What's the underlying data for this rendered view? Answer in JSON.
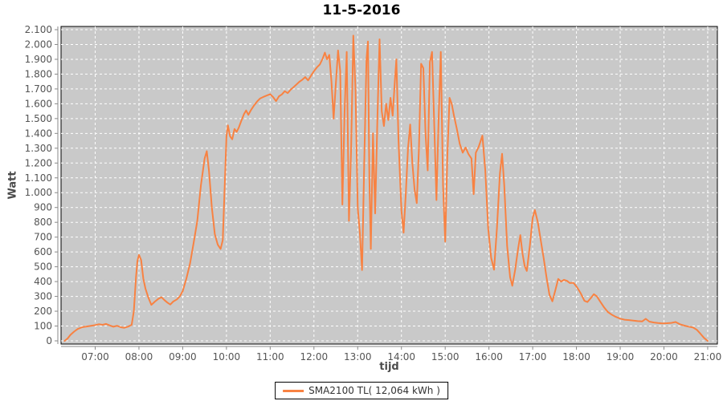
{
  "title": "11-5-2016",
  "y_axis_label": "Watt",
  "x_axis_label": "tijd",
  "legend": {
    "label": "SMA2100 TL( 12,064 kWh )"
  },
  "chart_data": {
    "type": "line",
    "title": "11-5-2016",
    "xlabel": "tijd",
    "ylabel": "Watt",
    "ylim": [
      0,
      2100
    ],
    "y_tick_step": 100,
    "grid": true,
    "legend_position": "bottom-center",
    "y_ticks": [
      "0",
      "100",
      "200",
      "300",
      "400",
      "500",
      "600",
      "700",
      "800",
      "900",
      "1.000",
      "1.100",
      "1.200",
      "1.300",
      "1.400",
      "1.500",
      "1.600",
      "1.700",
      "1.800",
      "1.900",
      "2.000",
      "2.100"
    ],
    "x_ticks": [
      "07:00",
      "08:00",
      "09:00",
      "10:00",
      "11:00",
      "12:00",
      "13:00",
      "14:00",
      "15:00",
      "16:00",
      "17:00",
      "18:00",
      "19:00",
      "20:00",
      "21:00"
    ],
    "colors": {
      "plot_bg": "#c9c9c9",
      "grid": "#ffffff",
      "axis": "#8a8a8a",
      "plot_border": "#000000",
      "tick_text": "#555555",
      "series": "#f88242"
    },
    "series": [
      {
        "name": "SMA2100 TL( 12,064 kWh )",
        "color": "#f88242",
        "points": [
          [
            "06:18",
            0
          ],
          [
            "06:22",
            15
          ],
          [
            "06:26",
            40
          ],
          [
            "06:31",
            62
          ],
          [
            "06:36",
            80
          ],
          [
            "06:42",
            92
          ],
          [
            "06:50",
            98
          ],
          [
            "07:00",
            106
          ],
          [
            "07:05",
            112
          ],
          [
            "07:10",
            108
          ],
          [
            "07:15",
            114
          ],
          [
            "07:20",
            104
          ],
          [
            "07:25",
            95
          ],
          [
            "07:30",
            102
          ],
          [
            "07:35",
            92
          ],
          [
            "07:40",
            88
          ],
          [
            "07:45",
            96
          ],
          [
            "07:50",
            108
          ],
          [
            "07:53",
            200
          ],
          [
            "07:56",
            430
          ],
          [
            "07:58",
            540
          ],
          [
            "08:00",
            580
          ],
          [
            "08:03",
            545
          ],
          [
            "08:06",
            420
          ],
          [
            "08:09",
            352
          ],
          [
            "08:13",
            290
          ],
          [
            "08:17",
            243
          ],
          [
            "08:22",
            265
          ],
          [
            "08:27",
            285
          ],
          [
            "08:31",
            294
          ],
          [
            "08:35",
            275
          ],
          [
            "08:39",
            258
          ],
          [
            "08:43",
            245
          ],
          [
            "08:47",
            265
          ],
          [
            "08:52",
            280
          ],
          [
            "08:56",
            300
          ],
          [
            "09:00",
            335
          ],
          [
            "09:05",
            420
          ],
          [
            "09:10",
            520
          ],
          [
            "09:15",
            660
          ],
          [
            "09:20",
            810
          ],
          [
            "09:25",
            1050
          ],
          [
            "09:30",
            1230
          ],
          [
            "09:33",
            1280
          ],
          [
            "09:36",
            1150
          ],
          [
            "09:40",
            900
          ],
          [
            "09:44",
            720
          ],
          [
            "09:48",
            650
          ],
          [
            "09:52",
            620
          ],
          [
            "09:55",
            680
          ],
          [
            "09:58",
            1100
          ],
          [
            "10:00",
            1380
          ],
          [
            "10:02",
            1455
          ],
          [
            "10:05",
            1380
          ],
          [
            "10:08",
            1360
          ],
          [
            "10:11",
            1430
          ],
          [
            "10:14",
            1410
          ],
          [
            "10:17",
            1440
          ],
          [
            "10:20",
            1480
          ],
          [
            "10:24",
            1530
          ],
          [
            "10:27",
            1555
          ],
          [
            "10:30",
            1525
          ],
          [
            "10:34",
            1560
          ],
          [
            "10:38",
            1590
          ],
          [
            "10:42",
            1615
          ],
          [
            "10:46",
            1635
          ],
          [
            "10:50",
            1645
          ],
          [
            "10:55",
            1655
          ],
          [
            "11:00",
            1665
          ],
          [
            "11:04",
            1645
          ],
          [
            "11:08",
            1618
          ],
          [
            "11:12",
            1650
          ],
          [
            "11:16",
            1663
          ],
          [
            "11:20",
            1685
          ],
          [
            "11:24",
            1672
          ],
          [
            "11:28",
            1695
          ],
          [
            "11:32",
            1712
          ],
          [
            "11:36",
            1730
          ],
          [
            "11:40",
            1748
          ],
          [
            "11:44",
            1762
          ],
          [
            "11:48",
            1780
          ],
          [
            "11:52",
            1758
          ],
          [
            "11:56",
            1790
          ],
          [
            "12:00",
            1820
          ],
          [
            "12:04",
            1845
          ],
          [
            "12:08",
            1865
          ],
          [
            "12:12",
            1905
          ],
          [
            "12:15",
            1945
          ],
          [
            "12:18",
            1900
          ],
          [
            "12:21",
            1930
          ],
          [
            "12:24",
            1750
          ],
          [
            "12:27",
            1500
          ],
          [
            "12:30",
            1730
          ],
          [
            "12:33",
            1960
          ],
          [
            "12:36",
            1820
          ],
          [
            "12:39",
            920
          ],
          [
            "12:42",
            1540
          ],
          [
            "12:45",
            1950
          ],
          [
            "12:48",
            810
          ],
          [
            "12:51",
            1300
          ],
          [
            "12:54",
            2060
          ],
          [
            "12:57",
            1700
          ],
          [
            "13:00",
            900
          ],
          [
            "13:03",
            725
          ],
          [
            "13:06",
            478
          ],
          [
            "13:09",
            1200
          ],
          [
            "13:12",
            1900
          ],
          [
            "13:14",
            2020
          ],
          [
            "13:16",
            1100
          ],
          [
            "13:18",
            620
          ],
          [
            "13:21",
            1400
          ],
          [
            "13:24",
            860
          ],
          [
            "13:27",
            1500
          ],
          [
            "13:30",
            2035
          ],
          [
            "13:33",
            1550
          ],
          [
            "13:36",
            1450
          ],
          [
            "13:39",
            1600
          ],
          [
            "13:42",
            1490
          ],
          [
            "13:45",
            1640
          ],
          [
            "13:48",
            1520
          ],
          [
            "13:51",
            1760
          ],
          [
            "13:53",
            1900
          ],
          [
            "13:56",
            1350
          ],
          [
            "14:00",
            880
          ],
          [
            "14:03",
            730
          ],
          [
            "14:06",
            1000
          ],
          [
            "14:09",
            1300
          ],
          [
            "14:12",
            1460
          ],
          [
            "14:15",
            1200
          ],
          [
            "14:18",
            1020
          ],
          [
            "14:21",
            930
          ],
          [
            "14:24",
            1300
          ],
          [
            "14:27",
            1870
          ],
          [
            "14:30",
            1840
          ],
          [
            "14:33",
            1400
          ],
          [
            "14:36",
            1150
          ],
          [
            "14:39",
            1880
          ],
          [
            "14:42",
            1950
          ],
          [
            "14:45",
            1450
          ],
          [
            "14:48",
            950
          ],
          [
            "14:51",
            1500
          ],
          [
            "14:54",
            1950
          ],
          [
            "14:57",
            1050
          ],
          [
            "15:00",
            670
          ],
          [
            "15:03",
            1250
          ],
          [
            "15:06",
            1640
          ],
          [
            "15:09",
            1600
          ],
          [
            "15:12",
            1520
          ],
          [
            "15:16",
            1430
          ],
          [
            "15:20",
            1330
          ],
          [
            "15:24",
            1270
          ],
          [
            "15:28",
            1305
          ],
          [
            "15:32",
            1260
          ],
          [
            "15:36",
            1230
          ],
          [
            "15:39",
            990
          ],
          [
            "15:42",
            1270
          ],
          [
            "15:46",
            1310
          ],
          [
            "15:51",
            1385
          ],
          [
            "15:55",
            1150
          ],
          [
            "15:59",
            760
          ],
          [
            "16:03",
            560
          ],
          [
            "16:07",
            480
          ],
          [
            "16:11",
            760
          ],
          [
            "16:15",
            1130
          ],
          [
            "16:18",
            1262
          ],
          [
            "16:21",
            1050
          ],
          [
            "16:25",
            640
          ],
          [
            "16:29",
            430
          ],
          [
            "16:32",
            372
          ],
          [
            "16:36",
            480
          ],
          [
            "16:40",
            620
          ],
          [
            "16:43",
            714
          ],
          [
            "16:46",
            590
          ],
          [
            "16:49",
            505
          ],
          [
            "16:52",
            472
          ],
          [
            "16:56",
            640
          ],
          [
            "17:00",
            830
          ],
          [
            "17:03",
            883
          ],
          [
            "17:07",
            800
          ],
          [
            "17:11",
            680
          ],
          [
            "17:15",
            560
          ],
          [
            "17:19",
            430
          ],
          [
            "17:23",
            310
          ],
          [
            "17:27",
            267
          ],
          [
            "17:31",
            340
          ],
          [
            "17:35",
            418
          ],
          [
            "17:39",
            400
          ],
          [
            "17:43",
            412
          ],
          [
            "17:47",
            405
          ],
          [
            "17:51",
            390
          ],
          [
            "17:56",
            392
          ],
          [
            "18:01",
            360
          ],
          [
            "18:06",
            320
          ],
          [
            "18:11",
            270
          ],
          [
            "18:15",
            262
          ],
          [
            "18:20",
            290
          ],
          [
            "18:24",
            315
          ],
          [
            "18:28",
            300
          ],
          [
            "18:33",
            262
          ],
          [
            "18:38",
            225
          ],
          [
            "18:43",
            195
          ],
          [
            "18:48",
            178
          ],
          [
            "18:54",
            162
          ],
          [
            "19:00",
            150
          ],
          [
            "19:06",
            143
          ],
          [
            "19:12",
            140
          ],
          [
            "19:18",
            137
          ],
          [
            "19:24",
            133
          ],
          [
            "19:30",
            131
          ],
          [
            "19:35",
            149
          ],
          [
            "19:40",
            130
          ],
          [
            "19:46",
            124
          ],
          [
            "19:52",
            120
          ],
          [
            "19:58",
            118
          ],
          [
            "20:04",
            119
          ],
          [
            "20:10",
            121
          ],
          [
            "20:16",
            127
          ],
          [
            "20:22",
            112
          ],
          [
            "20:28",
            103
          ],
          [
            "20:34",
            96
          ],
          [
            "20:40",
            90
          ],
          [
            "20:45",
            75
          ],
          [
            "20:50",
            48
          ],
          [
            "20:55",
            20
          ],
          [
            "21:00",
            0
          ]
        ]
      }
    ]
  }
}
